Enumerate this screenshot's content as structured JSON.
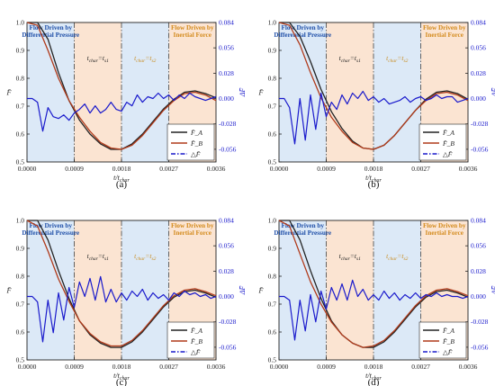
{
  "chart_data": [
    {
      "type": "line",
      "caption": "(a)",
      "band_left": [
        "Flow Driven by",
        "Differential Pressure"
      ],
      "band_right": [
        "Flow Driven by",
        "Inertial Force"
      ],
      "char_left": [
        "t",
        "char",
        "=t",
        "s1"
      ],
      "char_right": [
        "t",
        "char",
        "=t",
        "s2"
      ],
      "xlabel": [
        "t/t",
        "char"
      ],
      "ylabel_left": "F̄",
      "ylabel_right": "ΔF̄",
      "xlim": [
        0,
        0.0036
      ],
      "ylim_left": [
        0.5,
        1.0
      ],
      "ylim_right": [
        -0.07,
        0.084
      ],
      "xticks": [
        "0.0000",
        "0.0009",
        "0.0018",
        "0.0027",
        "0.0036"
      ],
      "yticks_left": [
        "0.5",
        "0.6",
        "0.7",
        "0.8",
        "0.9",
        "1.0"
      ],
      "yticks_right": [
        "-0.056",
        "-0.028",
        "0.000",
        "0.028",
        "0.056",
        "0.084"
      ],
      "dashed_lines": [
        0.0009,
        0.0018,
        0.0027
      ],
      "legend": [
        "F̄_A",
        "F̄_B",
        "△F̄"
      ],
      "series": [
        {
          "name": "F̄_A",
          "color": "#222222",
          "x": [
            0,
            0.0002,
            0.0004,
            0.0006,
            0.0008,
            0.001,
            0.0012,
            0.0014,
            0.0016,
            0.0018,
            0.002,
            0.0022,
            0.0024,
            0.0026,
            0.0028,
            0.003,
            0.0032,
            0.0034,
            0.0036
          ],
          "y": [
            1.0,
            1.0,
            0.94,
            0.82,
            0.72,
            0.65,
            0.6,
            0.565,
            0.545,
            0.545,
            0.565,
            0.6,
            0.645,
            0.69,
            0.725,
            0.75,
            0.755,
            0.745,
            0.73
          ]
        },
        {
          "name": "F̄_B",
          "color": "#b03a1a",
          "x": [
            0,
            0.0002,
            0.0004,
            0.0006,
            0.0008,
            0.001,
            0.0012,
            0.0014,
            0.0016,
            0.0018,
            0.002,
            0.0022,
            0.0024,
            0.0026,
            0.0028,
            0.003,
            0.0032,
            0.0034,
            0.0036
          ],
          "y": [
            1.0,
            0.99,
            0.9,
            0.8,
            0.72,
            0.66,
            0.61,
            0.57,
            0.55,
            0.545,
            0.56,
            0.595,
            0.64,
            0.685,
            0.72,
            0.745,
            0.75,
            0.74,
            0.72
          ]
        },
        {
          "name": "△F̄",
          "color": "#1a1acc",
          "dashed": true,
          "x": [
            0,
            0.0001,
            0.0002,
            0.0003,
            0.0004,
            0.0005,
            0.0006,
            0.0007,
            0.0008,
            0.0009,
            0.001,
            0.0011,
            0.0012,
            0.0013,
            0.0014,
            0.0015,
            0.0016,
            0.0017,
            0.0018,
            0.0019,
            0.002,
            0.0021,
            0.0022,
            0.0023,
            0.0024,
            0.0025,
            0.0026,
            0.0027,
            0.0028,
            0.0029,
            0.003,
            0.0031,
            0.0032,
            0.0033,
            0.0034,
            0.0035,
            0.0036
          ],
          "y": [
            0,
            0,
            -0.004,
            -0.036,
            -0.01,
            -0.02,
            -0.022,
            -0.018,
            -0.024,
            -0.016,
            -0.012,
            -0.006,
            -0.016,
            -0.008,
            -0.016,
            -0.012,
            -0.004,
            -0.012,
            -0.014,
            -0.004,
            -0.008,
            0.004,
            -0.004,
            0.002,
            0.0,
            0.006,
            0.0,
            0.004,
            -0.002,
            0.004,
            0.0,
            0.006,
            0.002,
            0.0,
            -0.002,
            0.0,
            0.002
          ]
        }
      ]
    },
    {
      "type": "line",
      "caption": "(b)",
      "band_left": [
        "Flow Driven by",
        "Differential Pressure"
      ],
      "band_right": [
        "Flow Driven by",
        "Inertial Force"
      ],
      "char_left": [
        "t",
        "char",
        "=t",
        "s1"
      ],
      "char_right": [
        "t",
        "char",
        "=t",
        "s2"
      ],
      "xlabel": [
        "t/t",
        "char"
      ],
      "ylabel_left": "F̄",
      "ylabel_right": "ΔF̄",
      "xlim": [
        0,
        0.0036
      ],
      "ylim_left": [
        0.5,
        1.0
      ],
      "ylim_right": [
        -0.07,
        0.084
      ],
      "xticks": [
        "0.0000",
        "0.0009",
        "0.0018",
        "0.0027",
        "0.0036"
      ],
      "yticks_left": [
        "0.5",
        "0.6",
        "0.7",
        "0.8",
        "0.9",
        "1.0"
      ],
      "yticks_right": [
        "-0.056",
        "-0.028",
        "0.000",
        "0.028",
        "0.056",
        "0.084"
      ],
      "dashed_lines": [
        0.0009,
        0.0018,
        0.0027
      ],
      "legend": [
        "F̄_A",
        "F̄_B",
        "△F̄"
      ],
      "series": [
        {
          "name": "F̄_A",
          "color": "#222222",
          "x": [
            0,
            0.0002,
            0.0004,
            0.0006,
            0.0008,
            0.001,
            0.0012,
            0.0014,
            0.0016,
            0.0018,
            0.002,
            0.0022,
            0.0024,
            0.0026,
            0.0028,
            0.003,
            0.0032,
            0.0034,
            0.0036
          ],
          "y": [
            1.0,
            1.0,
            0.95,
            0.86,
            0.76,
            0.68,
            0.62,
            0.575,
            0.55,
            0.545,
            0.56,
            0.595,
            0.64,
            0.685,
            0.725,
            0.75,
            0.755,
            0.745,
            0.725
          ]
        },
        {
          "name": "F̄_B",
          "color": "#b03a1a",
          "x": [
            0,
            0.0002,
            0.0004,
            0.0006,
            0.0008,
            0.001,
            0.0012,
            0.0014,
            0.0016,
            0.0018,
            0.002,
            0.0022,
            0.0024,
            0.0026,
            0.0028,
            0.003,
            0.0032,
            0.0034,
            0.0036
          ],
          "y": [
            1.0,
            0.99,
            0.92,
            0.82,
            0.73,
            0.66,
            0.61,
            0.57,
            0.55,
            0.545,
            0.56,
            0.595,
            0.64,
            0.685,
            0.72,
            0.745,
            0.75,
            0.74,
            0.72
          ]
        },
        {
          "name": "△F̄",
          "color": "#1a1acc",
          "dashed": true,
          "x": [
            0,
            0.0001,
            0.0002,
            0.0003,
            0.0004,
            0.0005,
            0.0006,
            0.0007,
            0.0008,
            0.0009,
            0.001,
            0.0011,
            0.0012,
            0.0013,
            0.0014,
            0.0015,
            0.0016,
            0.0017,
            0.0018,
            0.0019,
            0.002,
            0.0021,
            0.0022,
            0.0023,
            0.0024,
            0.0025,
            0.0026,
            0.0027,
            0.0028,
            0.0029,
            0.003,
            0.0031,
            0.0032,
            0.0033,
            0.0034,
            0.0035,
            0.0036
          ],
          "y": [
            0,
            0,
            -0.01,
            -0.05,
            0.0,
            -0.046,
            0.004,
            -0.034,
            0.006,
            -0.02,
            -0.004,
            -0.012,
            0.004,
            -0.006,
            0.006,
            0.0,
            0.008,
            -0.002,
            0.002,
            -0.004,
            0.0,
            -0.006,
            -0.004,
            -0.002,
            0.002,
            -0.004,
            0.0,
            0.002,
            -0.002,
            0.0,
            0.004,
            0.0,
            0.002,
            0.002,
            -0.004,
            -0.002,
            0.0
          ]
        }
      ]
    },
    {
      "type": "line",
      "caption": "(c)",
      "band_left": [
        "Flow Driven by",
        "Differential Pressure"
      ],
      "band_right": [
        "Flow Driven by",
        "Inertial Force"
      ],
      "char_left": [
        "t",
        "char",
        "=t",
        "s1"
      ],
      "char_right": [
        "t",
        "char",
        "=t",
        "s2"
      ],
      "xlabel": [
        "t/t",
        "char"
      ],
      "ylabel_left": "F̄",
      "ylabel_right": "ΔF̄",
      "xlim": [
        0,
        0.0036
      ],
      "ylim_left": [
        0.5,
        1.0
      ],
      "ylim_right": [
        -0.07,
        0.084
      ],
      "xticks": [
        "0.0000",
        "0.0009",
        "0.0018",
        "0.0027",
        "0.0036"
      ],
      "yticks_left": [
        "0.5",
        "0.6",
        "0.7",
        "0.8",
        "0.9",
        "1.0"
      ],
      "yticks_right": [
        "-0.056",
        "-0.028",
        "0.000",
        "0.028",
        "0.056",
        "0.084"
      ],
      "dashed_lines": [
        0.0009,
        0.0018,
        0.0027
      ],
      "legend": [
        "F̄_A",
        "F̄_B",
        "△F̄"
      ],
      "series": [
        {
          "name": "F̄_A",
          "color": "#222222",
          "x": [
            0,
            0.0002,
            0.0004,
            0.0006,
            0.0008,
            0.001,
            0.0012,
            0.0014,
            0.0016,
            0.0018,
            0.002,
            0.0022,
            0.0024,
            0.0026,
            0.0028,
            0.003,
            0.0032,
            0.0034,
            0.0036
          ],
          "y": [
            1.0,
            1.0,
            0.93,
            0.82,
            0.72,
            0.64,
            0.59,
            0.56,
            0.545,
            0.545,
            0.565,
            0.6,
            0.645,
            0.69,
            0.725,
            0.745,
            0.75,
            0.74,
            0.725
          ]
        },
        {
          "name": "F̄_B",
          "color": "#b03a1a",
          "x": [
            0,
            0.0002,
            0.0004,
            0.0006,
            0.0008,
            0.001,
            0.0012,
            0.0014,
            0.0016,
            0.0018,
            0.002,
            0.0022,
            0.0024,
            0.0026,
            0.0028,
            0.003,
            0.0032,
            0.0034,
            0.0036
          ],
          "y": [
            1.0,
            0.98,
            0.89,
            0.79,
            0.71,
            0.64,
            0.595,
            0.565,
            0.55,
            0.55,
            0.57,
            0.605,
            0.65,
            0.695,
            0.73,
            0.75,
            0.755,
            0.745,
            0.73
          ]
        },
        {
          "name": "△F̄",
          "color": "#1a1acc",
          "dashed": true,
          "x": [
            0,
            0.0001,
            0.0002,
            0.0003,
            0.0004,
            0.0005,
            0.0006,
            0.0007,
            0.0008,
            0.0009,
            0.001,
            0.0011,
            0.0012,
            0.0013,
            0.0014,
            0.0015,
            0.0016,
            0.0017,
            0.0018,
            0.0019,
            0.002,
            0.0021,
            0.0022,
            0.0023,
            0.0024,
            0.0025,
            0.0026,
            0.0027,
            0.0028,
            0.0029,
            0.003,
            0.0031,
            0.0032,
            0.0033,
            0.0034,
            0.0035,
            0.0036
          ],
          "y": [
            0,
            0,
            -0.006,
            -0.05,
            -0.004,
            -0.04,
            0.004,
            -0.026,
            0.01,
            -0.012,
            0.016,
            0.0,
            0.02,
            -0.004,
            0.022,
            -0.006,
            0.008,
            -0.006,
            0.004,
            -0.004,
            0.006,
            0.0,
            0.008,
            -0.004,
            0.004,
            -0.002,
            0.002,
            -0.004,
            0.004,
            0.0,
            0.006,
            0.002,
            0.004,
            0.0,
            0.002,
            -0.002,
            0.0
          ]
        }
      ]
    },
    {
      "type": "line",
      "caption": "(d)",
      "band_left": [
        "Flow Driven by",
        "Differential Pressure"
      ],
      "band_right": [
        "Flow Driven by",
        "Inertial Force"
      ],
      "char_left": [
        "t",
        "char",
        "=t",
        "s1"
      ],
      "char_right": [
        "t",
        "char",
        "=t",
        "s2"
      ],
      "xlabel": [
        "t/t",
        "char"
      ],
      "ylabel_left": "F̄",
      "ylabel_right": "ΔF̄",
      "xlim": [
        0,
        0.0036
      ],
      "ylim_left": [
        0.5,
        1.0
      ],
      "ylim_right": [
        -0.07,
        0.084
      ],
      "xticks": [
        "0.0000",
        "0.0009",
        "0.0018",
        "0.0027",
        "0.0036"
      ],
      "yticks_left": [
        "0.5",
        "0.6",
        "0.7",
        "0.8",
        "0.9",
        "1.0"
      ],
      "yticks_right": [
        "-0.056",
        "-0.028",
        "0.000",
        "0.028",
        "0.056",
        "0.084"
      ],
      "dashed_lines": [
        0.0009,
        0.0018,
        0.0027
      ],
      "legend": [
        "F̄_A",
        "F̄_B",
        "△F̄"
      ],
      "series": [
        {
          "name": "F̄_A",
          "color": "#222222",
          "x": [
            0,
            0.0002,
            0.0004,
            0.0006,
            0.0008,
            0.001,
            0.0012,
            0.0014,
            0.0016,
            0.0018,
            0.002,
            0.0022,
            0.0024,
            0.0026,
            0.0028,
            0.003,
            0.0032,
            0.0034,
            0.0036
          ],
          "y": [
            1.0,
            1.0,
            0.93,
            0.82,
            0.72,
            0.64,
            0.59,
            0.56,
            0.545,
            0.545,
            0.565,
            0.6,
            0.645,
            0.69,
            0.725,
            0.745,
            0.75,
            0.74,
            0.725
          ]
        },
        {
          "name": "F̄_B",
          "color": "#b03a1a",
          "x": [
            0,
            0.0002,
            0.0004,
            0.0006,
            0.0008,
            0.001,
            0.0012,
            0.0014,
            0.0016,
            0.0018,
            0.002,
            0.0022,
            0.0024,
            0.0026,
            0.0028,
            0.003,
            0.0032,
            0.0034,
            0.0036
          ],
          "y": [
            1.0,
            0.98,
            0.88,
            0.78,
            0.7,
            0.635,
            0.59,
            0.56,
            0.545,
            0.55,
            0.57,
            0.605,
            0.65,
            0.695,
            0.73,
            0.75,
            0.755,
            0.745,
            0.73
          ]
        },
        {
          "name": "△F̄",
          "color": "#1a1acc",
          "dashed": true,
          "x": [
            0,
            0.0001,
            0.0002,
            0.0003,
            0.0004,
            0.0005,
            0.0006,
            0.0007,
            0.0008,
            0.0009,
            0.001,
            0.0011,
            0.0012,
            0.0013,
            0.0014,
            0.0015,
            0.0016,
            0.0017,
            0.0018,
            0.0019,
            0.002,
            0.0021,
            0.0022,
            0.0023,
            0.0024,
            0.0025,
            0.0026,
            0.0027,
            0.0028,
            0.0029,
            0.003,
            0.0031,
            0.0032,
            0.0033,
            0.0034,
            0.0035,
            0.0036
          ],
          "y": [
            0,
            0,
            -0.004,
            -0.048,
            -0.004,
            -0.038,
            0.002,
            -0.028,
            0.006,
            -0.014,
            0.01,
            -0.004,
            0.014,
            -0.004,
            0.018,
            0.0,
            0.008,
            -0.004,
            0.002,
            -0.004,
            0.006,
            -0.002,
            0.004,
            -0.004,
            0.002,
            -0.002,
            0.004,
            -0.002,
            0.002,
            0.0,
            0.004,
            0.0,
            0.002,
            0.0,
            0.0,
            -0.002,
            0.0
          ]
        }
      ]
    }
  ]
}
